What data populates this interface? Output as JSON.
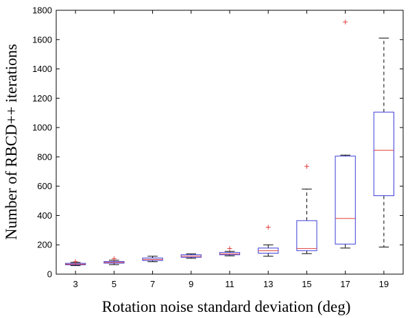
{
  "chart_data": {
    "type": "box",
    "xlabel": "Rotation noise standard deviation (deg)",
    "ylabel": "Number of RBCD++ iterations",
    "categories": [
      "3",
      "5",
      "7",
      "9",
      "11",
      "13",
      "15",
      "17",
      "19"
    ],
    "ylim": [
      0,
      1800
    ],
    "yticks": [
      0,
      200,
      400,
      600,
      800,
      1000,
      1200,
      1400,
      1600,
      1800
    ],
    "grid": false,
    "legend": "none",
    "boxes": [
      {
        "x": "3",
        "whisker_low": 58,
        "q1": 64,
        "median": 68,
        "q3": 74,
        "whisker_high": 80,
        "outliers": [
          85
        ]
      },
      {
        "x": "5",
        "whisker_low": 65,
        "q1": 75,
        "median": 80,
        "q3": 86,
        "whisker_high": 95,
        "outliers": [
          105
        ]
      },
      {
        "x": "7",
        "whisker_low": 85,
        "q1": 93,
        "median": 100,
        "q3": 110,
        "whisker_high": 122,
        "outliers": []
      },
      {
        "x": "9",
        "whisker_low": 108,
        "q1": 115,
        "median": 122,
        "q3": 132,
        "whisker_high": 138,
        "outliers": []
      },
      {
        "x": "11",
        "whisker_low": 125,
        "q1": 132,
        "median": 138,
        "q3": 148,
        "whisker_high": 155,
        "outliers": [
          175
        ]
      },
      {
        "x": "13",
        "whisker_low": 122,
        "q1": 143,
        "median": 160,
        "q3": 178,
        "whisker_high": 200,
        "outliers": [
          320
        ]
      },
      {
        "x": "15",
        "whisker_low": 140,
        "q1": 160,
        "median": 175,
        "q3": 365,
        "whisker_high": 580,
        "outliers": [
          735
        ]
      },
      {
        "x": "17",
        "whisker_low": 178,
        "q1": 205,
        "median": 380,
        "q3": 805,
        "whisker_high": 812,
        "outliers": [
          1720
        ]
      },
      {
        "x": "19",
        "whisker_low": 185,
        "q1": 535,
        "median": 845,
        "q3": 1105,
        "whisker_high": 1610,
        "outliers": []
      }
    ],
    "colors": {
      "box": "#3b3bd6",
      "median": "#e03c3c",
      "whisker": "#000000",
      "outlier": "#e03c3c",
      "axis": "#000000"
    }
  }
}
